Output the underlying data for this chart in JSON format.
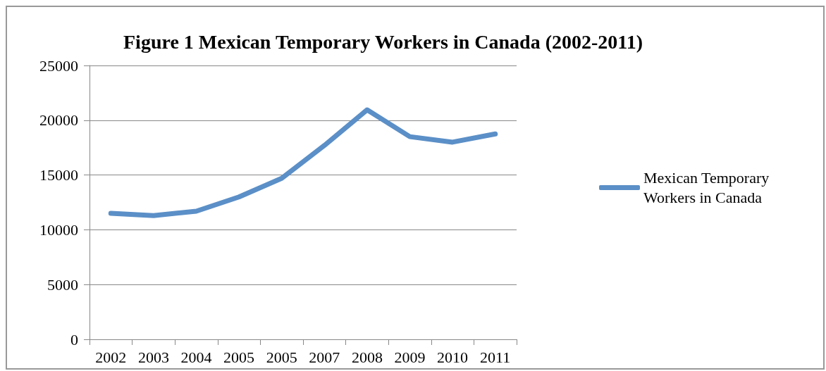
{
  "chart_data": {
    "type": "line",
    "title": "Figure 1 Mexican Temporary Workers in Canada (2002-2011)",
    "categories": [
      "2002",
      "2003",
      "2004",
      "2005",
      "2005",
      "2007",
      "2008",
      "2009",
      "2010",
      "2011"
    ],
    "series": [
      {
        "name": "Mexican Temporary Workers in Canada",
        "color": "#5b8fc7",
        "values": [
          11500,
          11300,
          11700,
          13000,
          14700,
          17700,
          20950,
          18500,
          18000,
          18750
        ]
      }
    ],
    "ylim": [
      0,
      25000
    ],
    "yticks": [
      0,
      5000,
      10000,
      15000,
      20000,
      25000
    ],
    "grid": "y",
    "legend": "right",
    "marker": "none",
    "line_style": "solid"
  }
}
